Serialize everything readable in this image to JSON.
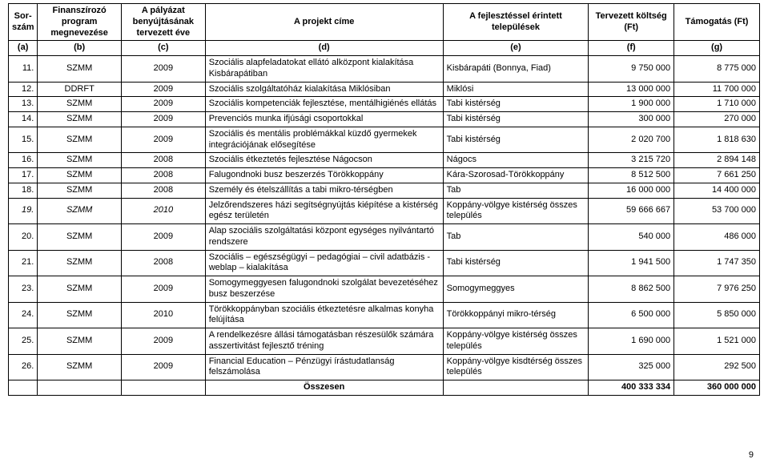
{
  "header": {
    "sor": "Sor-\nszám",
    "prog": "Finanszírozó program megnevezése",
    "ev": "A pályázat benyújtásának tervezett éve",
    "cim": "A projekt címe",
    "tel": "A fejlesztéssel érintett települések",
    "kolt": "Tervezett költség (Ft)",
    "tam": "Támogatás (Ft)"
  },
  "colref": {
    "a": "(a)",
    "b": "(b)",
    "c": "(c)",
    "d": "(d)",
    "e": "(e)",
    "f": "(f)",
    "g": "(g)"
  },
  "rows": [
    {
      "n": "11.",
      "prog": "SZMM",
      "ev": "2009",
      "cim": "Szociális alapfeladatokat ellátó alközpont kialakítása Kisbárapátiban",
      "tel": "Kisbárapáti (Bonnya, Fiad)",
      "kolt": "9 750 000",
      "tam": "8 775 000"
    },
    {
      "n": "12.",
      "prog": "DDRFT",
      "ev": "2009",
      "cim": "Szociális szolgáltatóház kialakítása Miklósiban",
      "tel": "Miklósi",
      "kolt": "13 000 000",
      "tam": "11 700 000"
    },
    {
      "n": "13.",
      "prog": "SZMM",
      "ev": "2009",
      "cim": "Szociális kompetenciák fejlesztése, mentálhigiénés ellátás",
      "tel": "Tabi kistérség",
      "kolt": "1 900 000",
      "tam": "1 710 000"
    },
    {
      "n": "14.",
      "prog": "SZMM",
      "ev": "2009",
      "cim": "Prevenciós munka ifjúsági csoportokkal",
      "tel": "Tabi kistérség",
      "kolt": "300 000",
      "tam": "270 000"
    },
    {
      "n": "15.",
      "prog": "SZMM",
      "ev": "2009",
      "cim": "Szociális és mentális problémákkal küzdő gyermekek integrációjának elősegítése",
      "tel": "Tabi kistérség",
      "kolt": "2 020 700",
      "tam": "1 818 630"
    },
    {
      "n": "16.",
      "prog": "SZMM",
      "ev": "2008",
      "cim": "Szociális étkeztetés fejlesztése Nágocson",
      "tel": "Nágocs",
      "kolt": "3 215 720",
      "tam": "2 894 148"
    },
    {
      "n": "17.",
      "prog": "SZMM",
      "ev": "2008",
      "cim": "Falugondnoki busz beszerzés Törökkoppány",
      "tel": "Kára-Szorosad-Törökkoppány",
      "kolt": "8 512 500",
      "tam": "7 661 250"
    },
    {
      "n": "18.",
      "prog": "SZMM",
      "ev": "2008",
      "cim": "Személy és ételszállítás a tabi mikro-térségben",
      "tel": "Tab",
      "kolt": "16 000 000",
      "tam": "14 400 000"
    },
    {
      "n": "19.",
      "prog": "SZMM",
      "ev": "2010",
      "cim": "Jelzőrendszeres házi segítségnyújtás kiépítése a kistérség egész területén",
      "tel": "Koppány-völgye kistérség összes település",
      "kolt": "59 666 667",
      "tam": "53 700 000",
      "italic": true
    },
    {
      "n": "20.",
      "prog": "SZMM",
      "ev": "2009",
      "cim": "Alap szociális szolgáltatási központ egységes nyilvántartó rendszere",
      "tel": "Tab",
      "kolt": "540 000",
      "tam": "486 000"
    },
    {
      "n": "21.",
      "prog": "SZMM",
      "ev": "2008",
      "cim": "Szociális – egészségügyi – pedagógiai – civil adatbázis - weblap – kialakítása",
      "tel": "Tabi kistérség",
      "kolt": "1 941 500",
      "tam": "1 747 350"
    },
    {
      "n": "23.",
      "prog": "SZMM",
      "ev": "2009",
      "cim": "Somogymeggyesen falugondnoki szolgálat bevezetéséhez busz beszerzése",
      "tel": "Somogymeggyes",
      "kolt": "8 862 500",
      "tam": "7 976 250"
    },
    {
      "n": "24.",
      "prog": "SZMM",
      "ev": "2010",
      "cim": "Törökkoppányban szociális étkeztetésre alkalmas konyha felújítása",
      "tel": "Törökkoppányi mikro-térség",
      "kolt": "6 500 000",
      "tam": "5 850 000"
    },
    {
      "n": "25.",
      "prog": "SZMM",
      "ev": "2009",
      "cim": "A rendelkezésre állási támogatásban részesülők számára asszertivitást fejlesztő tréning",
      "tel": "Koppány-völgye kistérség összes település",
      "kolt": "1 690 000",
      "tam": "1 521 000"
    },
    {
      "n": "26.",
      "prog": "SZMM",
      "ev": "2009",
      "cim": "Financial Education – Pénzügyi írástudatlanság felszámolása",
      "tel": "Koppány-völgye kisdtérség összes település",
      "kolt": "325 000",
      "tam": "292 500"
    }
  ],
  "totals": {
    "label": "Összesen",
    "kolt": "400 333 334",
    "tam": "360 000 000"
  },
  "pageNumber": "9"
}
